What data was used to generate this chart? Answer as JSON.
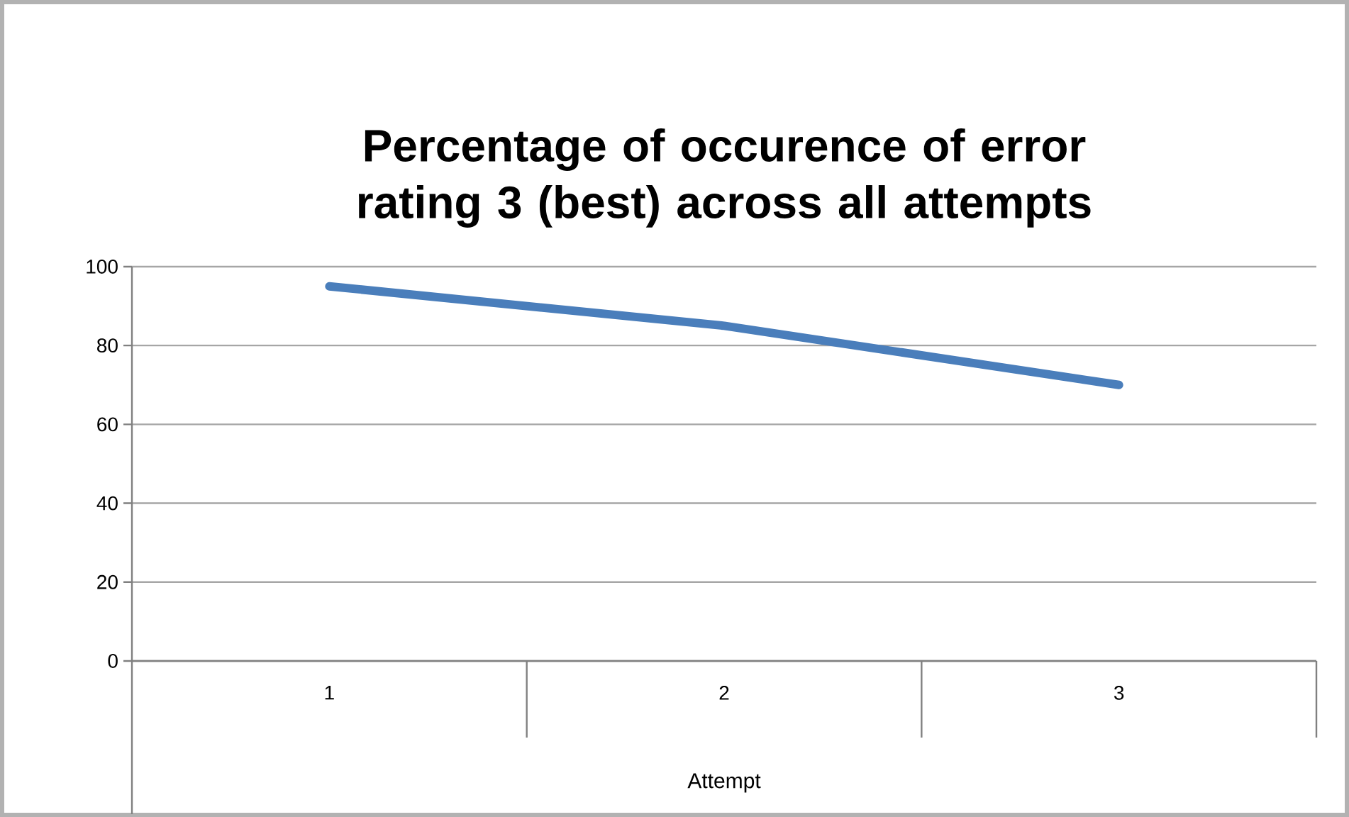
{
  "chart_data": {
    "type": "line",
    "title": "Percentage of occurence of error rating 3 (best) across all attempts",
    "xlabel": "Attempt",
    "categories": [
      "1",
      "2",
      "3"
    ],
    "series": [
      {
        "color": "#4a7ebb",
        "values": [
          95,
          85,
          70
        ]
      }
    ],
    "ylim": [
      0,
      100
    ],
    "yticks": [
      0,
      20,
      40,
      60,
      80,
      100
    ],
    "grid": "y",
    "marker": "none"
  }
}
